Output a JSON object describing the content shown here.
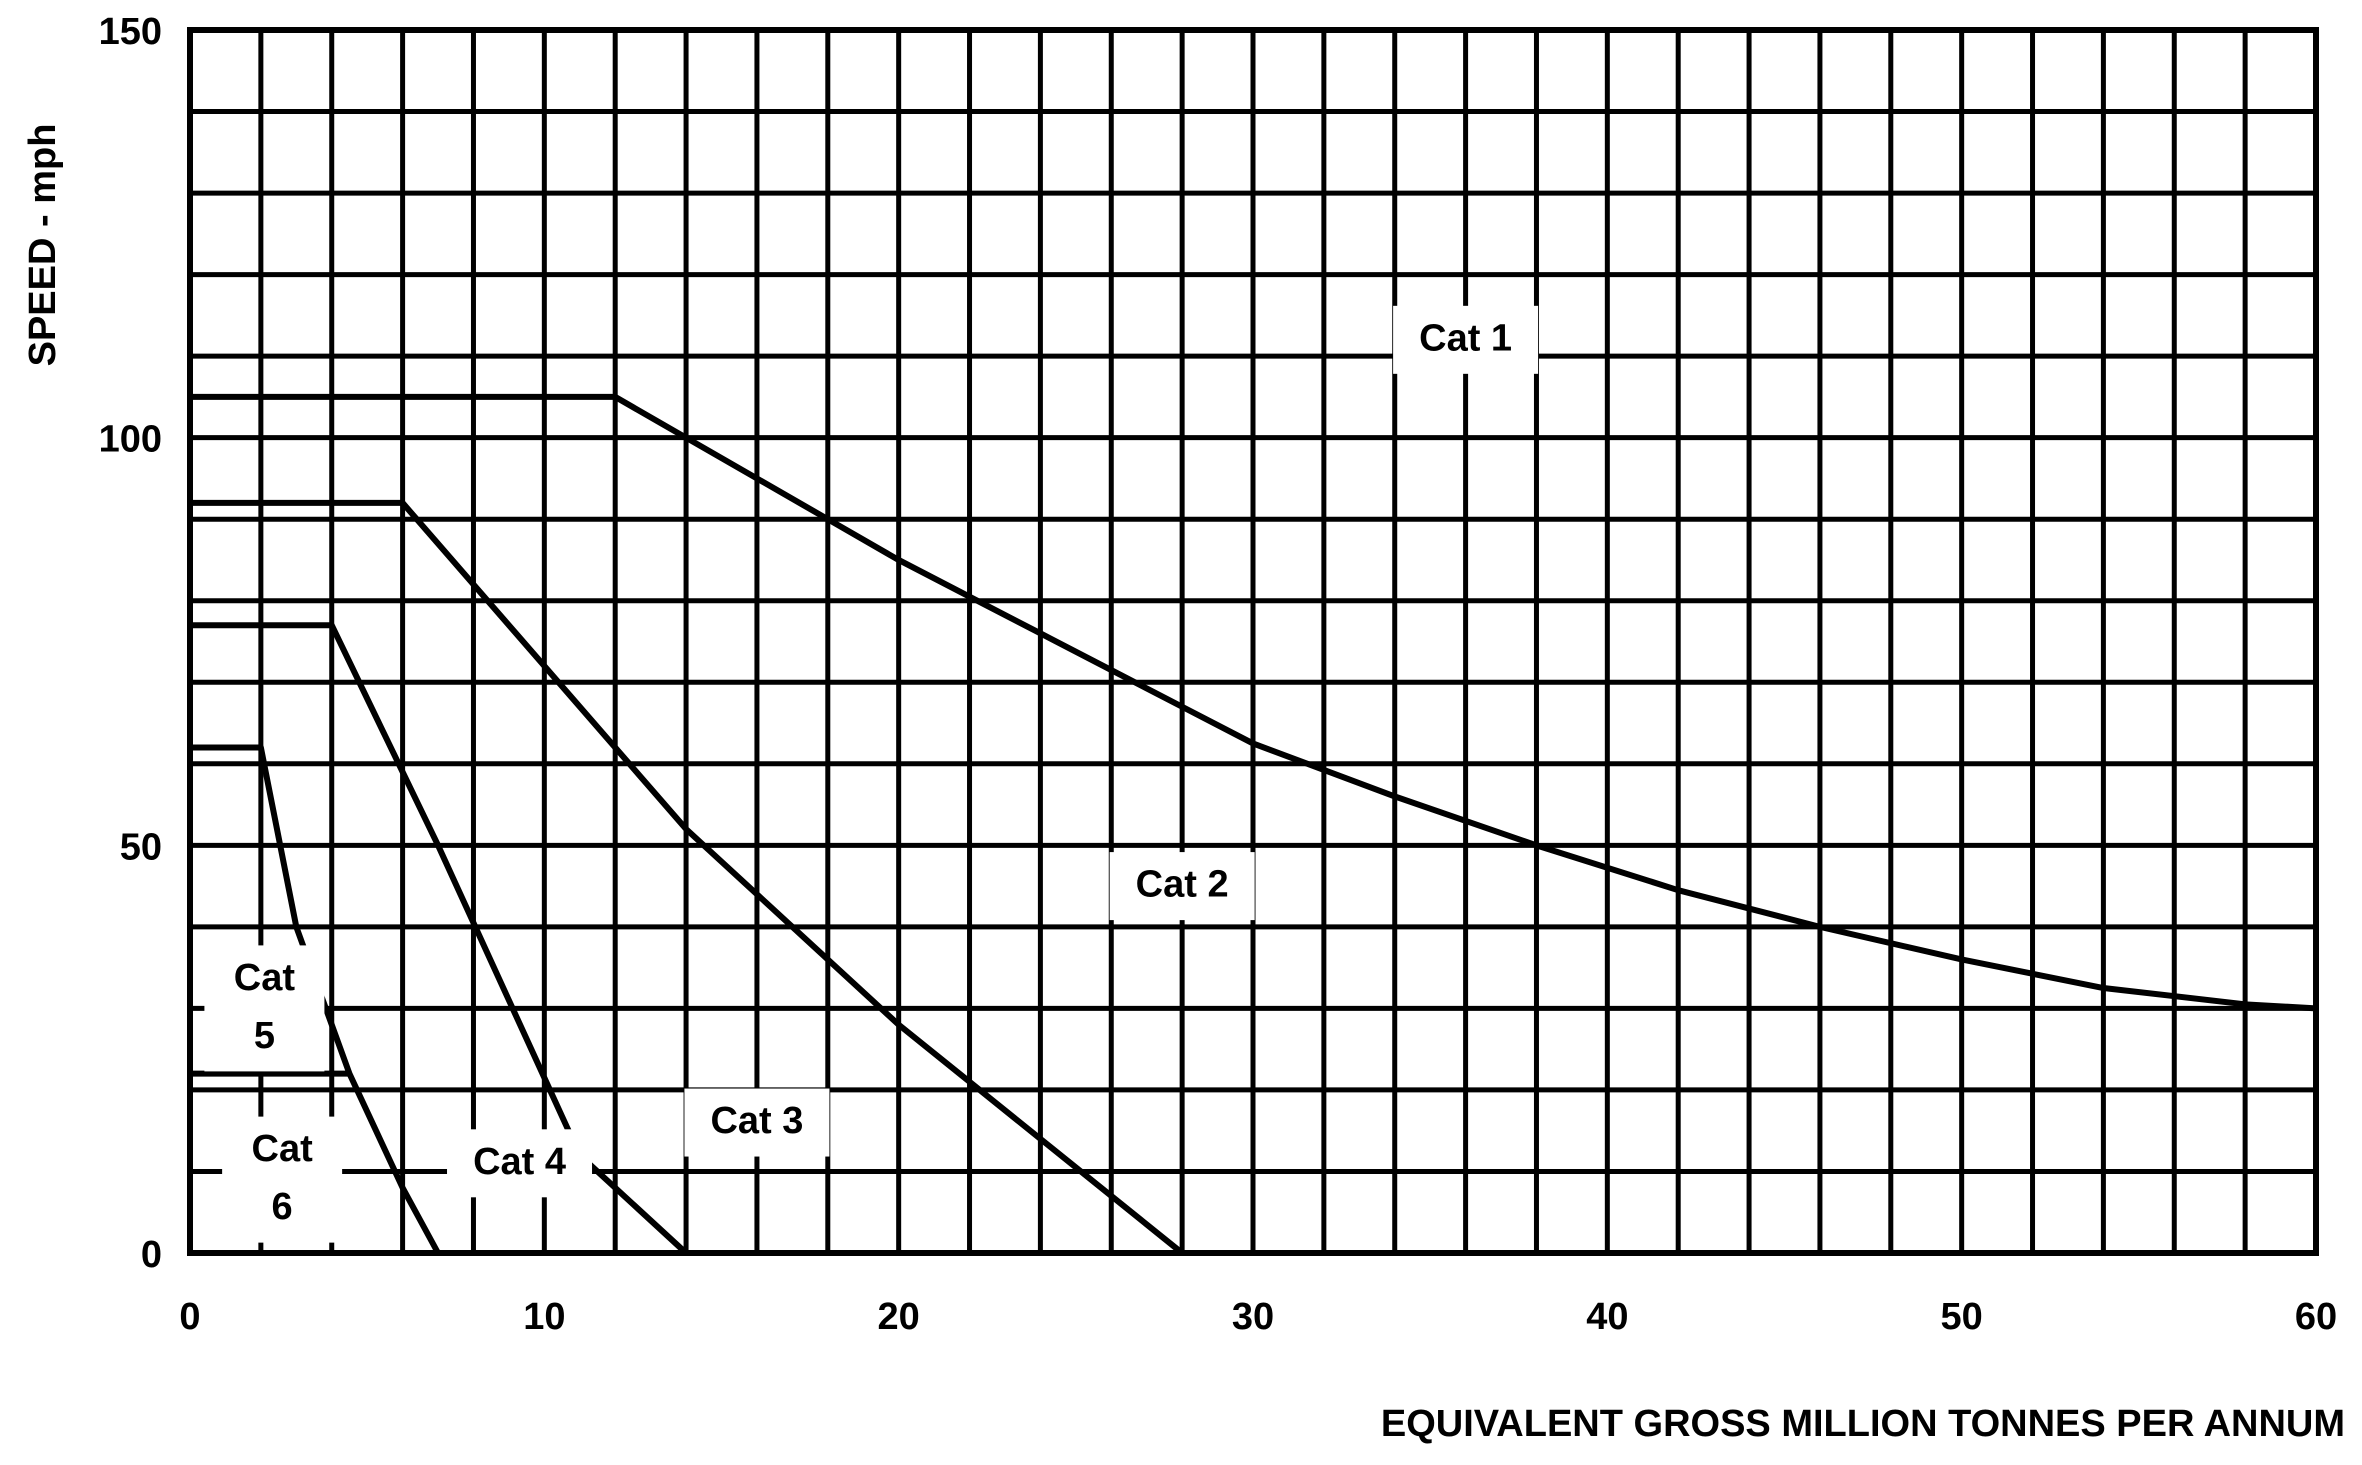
{
  "chart_data": {
    "type": "line",
    "xlabel": "EQUIVALENT GROSS MILLION TONNES PER ANNUM",
    "ylabel": "SPEED - mph",
    "xlim": [
      0,
      60
    ],
    "ylim": [
      0,
      150
    ],
    "x_ticks": [
      0,
      10,
      20,
      30,
      40,
      50,
      60
    ],
    "y_ticks": [
      0,
      50,
      100,
      150
    ],
    "grid": true,
    "series": [
      {
        "x": [
          0,
          12,
          14,
          16,
          18,
          20,
          22,
          24,
          26,
          28,
          30,
          34,
          38,
          42,
          46,
          50,
          54,
          58,
          60
        ],
        "y": [
          105,
          105,
          100,
          95,
          90,
          85,
          80.5,
          76,
          71.5,
          67,
          62.5,
          56,
          50,
          44.5,
          40,
          36,
          32.5,
          30.5,
          30
        ]
      },
      {
        "x": [
          0,
          6,
          14,
          20,
          28
        ],
        "y": [
          92,
          92,
          52,
          28,
          0
        ]
      },
      {
        "x": [
          0,
          4,
          7,
          11,
          14
        ],
        "y": [
          77,
          77,
          50,
          12,
          0
        ]
      },
      {
        "x": [
          0,
          2,
          3,
          4.5,
          6,
          7
        ],
        "y": [
          62,
          62,
          40,
          22,
          8,
          0
        ]
      },
      {
        "x": [
          0,
          4.5
        ],
        "y": [
          22,
          22
        ]
      }
    ],
    "annotations": [
      {
        "text": "Cat 1",
        "x": 36,
        "y": 112
      },
      {
        "text": "Cat 2",
        "x": 28,
        "y": 45
      },
      {
        "text": "Cat 3",
        "x": 16,
        "y": 16
      },
      {
        "text": "Cat 4",
        "x": 9.3,
        "y": 11
      },
      {
        "text": "Cat 5",
        "x": 2.1,
        "y": 30
      },
      {
        "text": "Cat 6",
        "x": 2.6,
        "y": 9
      }
    ]
  }
}
